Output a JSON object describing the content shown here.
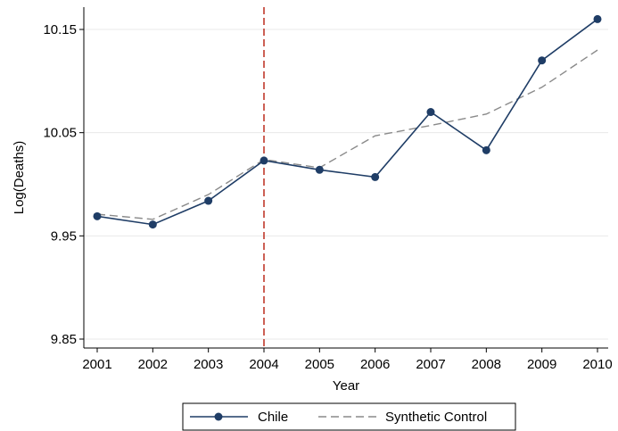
{
  "chart_data": {
    "type": "line",
    "xlabel": "Year",
    "ylabel": "Log(Deaths)",
    "x": [
      2001,
      2002,
      2003,
      2004,
      2005,
      2006,
      2007,
      2008,
      2009,
      2010
    ],
    "x_ticks": [
      "2001",
      "2002",
      "2003",
      "2004",
      "2005",
      "2006",
      "2007",
      "2008",
      "2009",
      "2010"
    ],
    "y_ticks": [
      9.85,
      9.95,
      10.05,
      10.15
    ],
    "y_tick_labels": [
      "9.85",
      "9.95",
      "10.05",
      "10.15"
    ],
    "xlim": [
      2001,
      2010
    ],
    "ylim": [
      9.85,
      10.16
    ],
    "grid": "horizontal",
    "legend_position": "bottom",
    "reference_line": {
      "x": 2004,
      "color": "#c0392b",
      "style": "dashed"
    },
    "series": [
      {
        "name": "Chile",
        "color": "#1f3d66",
        "style": "solid-with-markers",
        "values": [
          9.969,
          9.961,
          9.984,
          10.023,
          10.014,
          10.007,
          10.07,
          10.033,
          10.12,
          10.16
        ]
      },
      {
        "name": "Synthetic Control",
        "color": "#8a8a8a",
        "style": "dashed",
        "values": [
          9.971,
          9.966,
          9.99,
          10.024,
          10.016,
          10.047,
          10.057,
          10.068,
          10.094,
          10.13
        ]
      }
    ]
  }
}
